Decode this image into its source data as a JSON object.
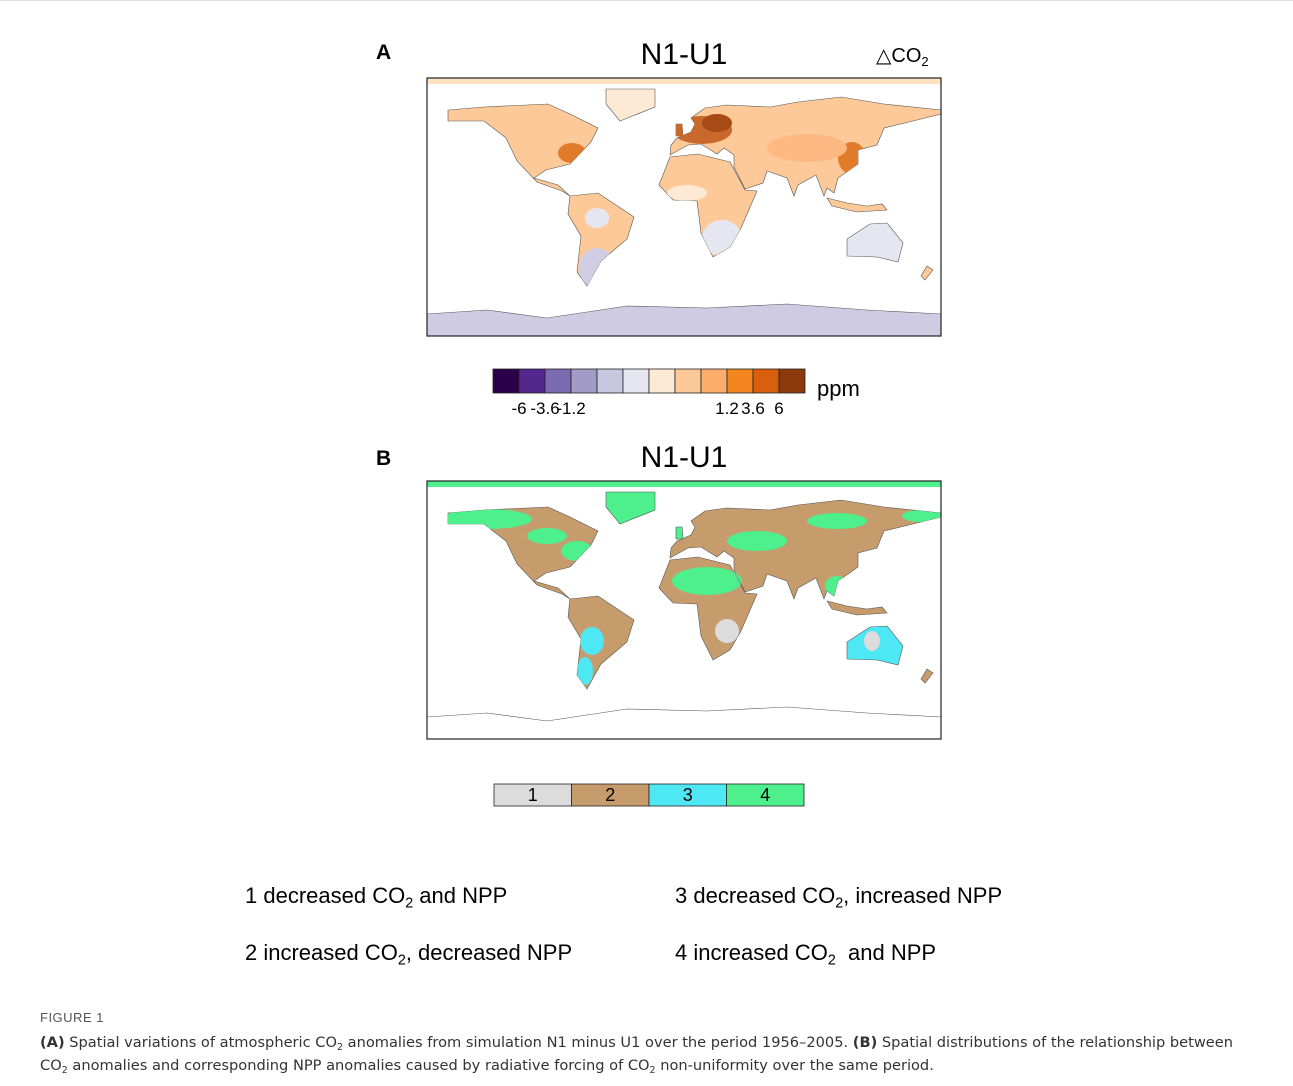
{
  "panel_a": {
    "label": "A",
    "title": "N1-U1",
    "variable": {
      "symbol": "△CO",
      "subscript": "2"
    },
    "colorbar": {
      "colors": [
        "#2d004b",
        "#54278f",
        "#7b6bb0",
        "#a29bc8",
        "#c9c6e0",
        "#e6e6f0",
        "#fde9d4",
        "#fdc998",
        "#fdae6b",
        "#f3861f",
        "#d95f0e",
        "#8c3a0b"
      ],
      "tick_labels": [
        -6,
        -3.6,
        -1.2,
        1.2,
        3.6,
        6
      ],
      "unit": "ppm"
    }
  },
  "panel_b": {
    "label": "B",
    "title": "N1-U1",
    "legend_boxes": [
      {
        "label": "1",
        "color": "#dcdcdc"
      },
      {
        "label": "2",
        "color": "#c69c6d"
      },
      {
        "label": "3",
        "color": "#4de8f4"
      },
      {
        "label": "4",
        "color": "#4df08c"
      }
    ],
    "legend_items": [
      {
        "parts": [
          "1 decreased CO",
          "2",
          " and NPP"
        ]
      },
      {
        "parts": [
          "2 increased CO",
          "2",
          ", decreased NPP"
        ]
      },
      {
        "parts": [
          "3 decreased CO",
          "2",
          ", increased NPP"
        ]
      },
      {
        "parts": [
          "4 increased CO",
          "2",
          "  and NPP"
        ]
      }
    ]
  },
  "caption": {
    "label": "FIGURE 1",
    "parts": [
      "(A)",
      " Spatial variations of atmospheric CO",
      "2",
      " anomalies from simulation N1 minus U1 over the period 1956–2005. ",
      "(B)",
      " Spatial distributions of the relationship between CO",
      "2",
      " anomalies and corresponding NPP anomalies caused by radiative forcing of CO",
      "2",
      " non-uniformity over the same period."
    ]
  }
}
